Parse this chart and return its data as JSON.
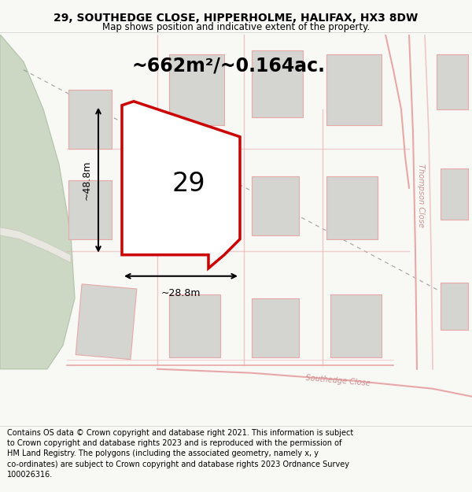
{
  "title": "29, SOUTHEDGE CLOSE, HIPPERHOLME, HALIFAX, HX3 8DW",
  "subtitle": "Map shows position and indicative extent of the property.",
  "footnote": "Contains OS data © Crown copyright and database right 2021. This information is subject\nto Crown copyright and database rights 2023 and is reproduced with the permission of\nHM Land Registry. The polygons (including the associated geometry, namely x, y\nco-ordinates) are subject to Crown copyright and database rights 2023 Ordnance Survey\n100026316.",
  "bg_color": "#f8f8f5",
  "map_bg": "#f8f8f5",
  "green_color": "#ccd8c4",
  "green_edge": "#b8c8b0",
  "road_color": "#e8a8a8",
  "building_color": "#d4d4d0",
  "building_edge": "#e8a8a8",
  "plot_outline_color": "#cc0000",
  "dim_line_color": "#000000",
  "area_text": "~662m²/~0.164ac.",
  "label_29": "29",
  "dim_width": "~28.8m",
  "dim_height": "~48.8m",
  "street_label_tc": "Thompson Close",
  "street_label_sc": "Southedge Close",
  "figsize": [
    6.0,
    6.25
  ],
  "dpi": 100,
  "title_fontsize": 10,
  "subtitle_fontsize": 8.5,
  "footnote_fontsize": 7
}
